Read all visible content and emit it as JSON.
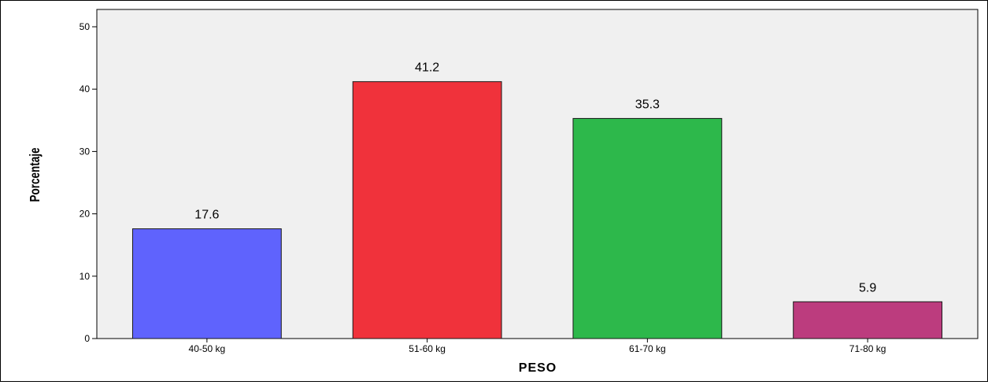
{
  "chart_data": {
    "type": "bar",
    "categories": [
      "40-50 kg",
      "51-60 kg",
      "61-70 kg",
      "71-80 kg"
    ],
    "values": [
      17.6,
      41.2,
      35.3,
      5.9
    ],
    "value_labels": [
      "17.6",
      "41.2",
      "35.3",
      "5.9"
    ],
    "xlabel": "PESO",
    "ylabel": "Porcentaje",
    "ylim": [
      0,
      50
    ],
    "yticks": [
      0,
      10,
      20,
      30,
      40,
      50
    ],
    "grid": false,
    "legend": "none",
    "colors": {
      "plot_background": "#f0f0f0",
      "bars": [
        "#5f63fd",
        "#f0323b",
        "#2db84b",
        "#bc3c7e"
      ]
    }
  }
}
